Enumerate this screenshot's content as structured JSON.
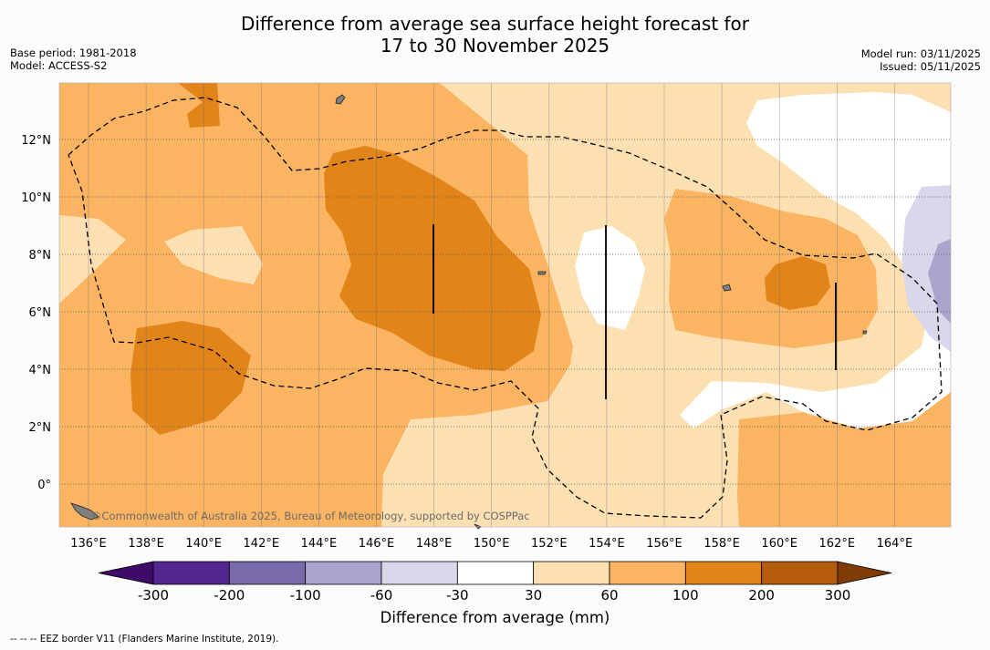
{
  "title_line1": "Difference from average sea surface height forecast for",
  "title_line2": "17 to 30 November 2025",
  "base_period": "Base period: 1981-2018",
  "model": "Model: ACCESS-S2",
  "model_run": "Model run: 03/11/2025",
  "issued": "Issued: 05/11/2025",
  "copyright": "©Commonwealth of Australia 2025, Bureau of Meteorology, supported by COSPPac",
  "colorbar": {
    "label": "Difference from average (mm)",
    "ticks": [
      "-300",
      "-200",
      "-100",
      "-60",
      "-30",
      "30",
      "60",
      "100",
      "200",
      "300"
    ],
    "colors": [
      "#3f0b68",
      "#54278f",
      "#7b6aaa",
      "#aca4cd",
      "#d8d8ea",
      "#ffffff",
      "#fde0b2",
      "#fbb461",
      "#e1841a",
      "#b45b0c",
      "#7f3b08"
    ]
  },
  "footnote": "--  --  -- EEZ border V11 (Flanders Marine Institute, 2019).",
  "lon_labels": [
    "136°E",
    "138°E",
    "140°E",
    "142°E",
    "144°E",
    "146°E",
    "148°E",
    "150°E",
    "152°E",
    "154°E",
    "156°E",
    "158°E",
    "160°E",
    "162°E",
    "164°E"
  ],
  "lat_labels": [
    "12°N",
    "10°N",
    "8°N",
    "6°N",
    "4°N",
    "2°N",
    "0°"
  ]
}
